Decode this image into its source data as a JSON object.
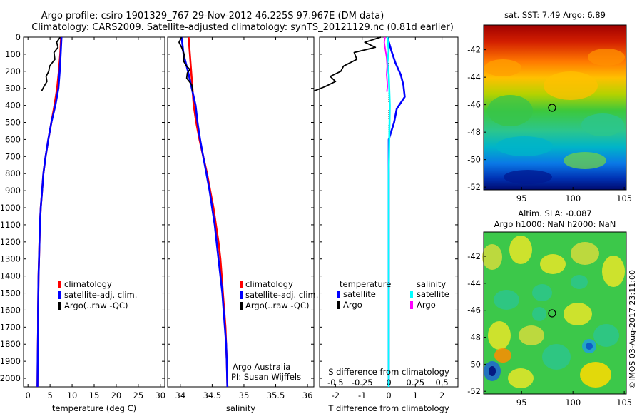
{
  "header": {
    "title_line1": "Argo profile: csiro 1901329_767 29-Nov-2012 46.225S 97.967E (DM data)",
    "title_line2": "Climatology: CARS2009. Satellite-adjusted climatology: synTS_20121129.nc (0.81d earlier)"
  },
  "annotations": {
    "argo_australia": "Argo Australia",
    "pi": "PI: Susan Wijffels",
    "imos_stamp": "©IMOS 03-Aug-2017 23:11:00"
  },
  "colors": {
    "climatology": "#ff0000",
    "satellite": "#0000ff",
    "argo": "#000000",
    "sal_satellite": "#00ffff",
    "sal_argo": "#ff00ff"
  },
  "chart_data": [
    {
      "id": "temperature",
      "type": "line",
      "xlabel": "temperature (deg C)",
      "ylabel": "",
      "xlim": [
        -1,
        31
      ],
      "ylim": [
        2050,
        0
      ],
      "xticks": [
        0,
        5,
        10,
        15,
        20,
        25,
        30
      ],
      "yticks": [
        0,
        100,
        200,
        300,
        400,
        500,
        600,
        700,
        800,
        900,
        1000,
        1100,
        1200,
        1300,
        1400,
        1500,
        1600,
        1700,
        1800,
        1900,
        2000
      ],
      "legend": [
        "climatology",
        "satellite-adj. clim.",
        "Argo(..raw -QC)"
      ],
      "legend_position": "lower-center",
      "series": [
        {
          "name": "climatology",
          "color": "#ff0000",
          "x": [
            7.5,
            7.3,
            7.0,
            6.6,
            6.0,
            5.3,
            4.6,
            4.0,
            3.5,
            3.2,
            2.9,
            2.7,
            2.6,
            2.5,
            2.4,
            2.35,
            2.3,
            2.3,
            2.25,
            2.2,
            2.15
          ],
          "y": [
            0,
            100,
            200,
            300,
            400,
            500,
            600,
            700,
            800,
            900,
            1000,
            1100,
            1200,
            1300,
            1400,
            1500,
            1600,
            1700,
            1800,
            1900,
            2050
          ]
        },
        {
          "name": "satellite-adj. clim.",
          "color": "#0000ff",
          "x": [
            7.6,
            7.4,
            7.2,
            6.9,
            6.2,
            5.3,
            4.6,
            4.0,
            3.5,
            3.2,
            2.9,
            2.7,
            2.6,
            2.5,
            2.4,
            2.35,
            2.3,
            2.3,
            2.25,
            2.2,
            2.15
          ],
          "y": [
            0,
            100,
            200,
            300,
            400,
            500,
            600,
            700,
            800,
            900,
            1000,
            1100,
            1200,
            1300,
            1400,
            1500,
            1600,
            1700,
            1800,
            1900,
            2050
          ]
        },
        {
          "name": "Argo(..raw -QC)",
          "color": "#000000",
          "x": [
            7.3,
            6.5,
            6.8,
            5.9,
            6.1,
            4.9,
            4.7,
            4.1,
            4.3,
            3.6,
            3.1
          ],
          "y": [
            0,
            30,
            60,
            90,
            130,
            170,
            200,
            230,
            260,
            290,
            315
          ]
        }
      ]
    },
    {
      "id": "salinity",
      "type": "line",
      "xlabel": "salinity",
      "ylabel": "",
      "xlim": [
        33.8,
        36.1
      ],
      "ylim": [
        2050,
        0
      ],
      "xticks": [
        34,
        34.5,
        35,
        35.5,
        36
      ],
      "legend": [
        "climatology",
        "satellite-adj. clim.",
        "Argo(..raw -QC)"
      ],
      "legend_position": "lower-right",
      "series": [
        {
          "name": "climatology",
          "color": "#ff0000",
          "x": [
            34.13,
            34.15,
            34.17,
            34.19,
            34.21,
            34.25,
            34.3,
            34.36,
            34.42,
            34.47,
            34.52,
            34.56,
            34.6,
            34.63,
            34.65,
            34.67,
            34.69,
            34.71,
            34.72,
            34.73,
            34.74
          ],
          "y": [
            0,
            100,
            200,
            300,
            400,
            500,
            600,
            700,
            800,
            900,
            1000,
            1100,
            1200,
            1300,
            1400,
            1500,
            1600,
            1700,
            1800,
            1900,
            2050
          ]
        },
        {
          "name": "satellite-adj. clim.",
          "color": "#0000ff",
          "x": [
            34.02,
            34.05,
            34.12,
            34.18,
            34.24,
            34.27,
            34.31,
            34.36,
            34.41,
            34.46,
            34.5,
            34.54,
            34.57,
            34.6,
            34.63,
            34.66,
            34.68,
            34.7,
            34.72,
            34.73,
            34.74
          ],
          "y": [
            0,
            100,
            200,
            300,
            400,
            500,
            600,
            700,
            800,
            900,
            1000,
            1100,
            1200,
            1300,
            1400,
            1500,
            1600,
            1700,
            1800,
            1900,
            2050
          ]
        },
        {
          "name": "Argo(..raw -QC)",
          "color": "#000000",
          "x": [
            34.02,
            33.98,
            34.02,
            34.06,
            34.05,
            34.1,
            34.15,
            34.11,
            34.1,
            34.14,
            34.18,
            34.19,
            34.19
          ],
          "y": [
            0,
            30,
            60,
            100,
            140,
            170,
            190,
            210,
            240,
            260,
            280,
            300,
            320
          ]
        }
      ]
    },
    {
      "id": "difference",
      "type": "line",
      "xlabel": "T difference from climatology",
      "xlabel_top": "S difference from climatology",
      "ylabel": "",
      "xlim": [
        -2.6,
        2.6
      ],
      "ylim": [
        2050,
        0
      ],
      "xticks": [
        -2,
        -1,
        0,
        1,
        2
      ],
      "xticks_top": [
        "-0.5",
        "-0.25",
        "0",
        "0.25",
        "0.5"
      ],
      "legend_headers": [
        "temperature",
        "salinity"
      ],
      "legend": [
        "satellite",
        "Argo",
        "satellite",
        "Argo"
      ],
      "legend_position": "lower-center",
      "series": [
        {
          "name": "satellite",
          "group": "temperature",
          "color": "#0000ff",
          "x": [
            -0.05,
            0.1,
            0.25,
            0.45,
            0.55,
            0.6,
            0.3,
            0.2,
            0.0,
            0.0,
            0.0,
            0.0,
            0.0,
            0.0,
            0.0,
            0.0,
            0.0,
            0.0,
            0.0,
            0.0,
            0.0
          ],
          "y": [
            0,
            80,
            150,
            220,
            280,
            350,
            420,
            500,
            600,
            700,
            800,
            900,
            1000,
            1100,
            1200,
            1300,
            1400,
            1500,
            1600,
            1700,
            2050
          ]
        },
        {
          "name": "Argo",
          "group": "temperature",
          "color": "#000000",
          "x": [
            -0.3,
            -0.9,
            -0.5,
            -1.3,
            -1.2,
            -1.7,
            -1.8,
            -2.2,
            -2.0,
            -2.4,
            -2.8
          ],
          "y": [
            0,
            30,
            60,
            90,
            130,
            170,
            200,
            230,
            260,
            290,
            315
          ]
        },
        {
          "name": "satellite",
          "group": "salinity",
          "color": "#00ffff",
          "x": [
            -0.05,
            0.0,
            -0.05,
            0.0,
            0.02,
            0.04,
            0.03,
            0.02,
            0.01,
            0.0,
            0.0,
            0.0,
            0.0,
            0.0,
            0.0,
            0.0,
            0.0,
            0.0,
            0.0,
            0.0,
            0.0
          ],
          "y": [
            0,
            80,
            150,
            220,
            300,
            400,
            500,
            600,
            700,
            800,
            900,
            1000,
            1100,
            1200,
            1300,
            1400,
            1500,
            1600,
            1700,
            1800,
            2050
          ]
        },
        {
          "name": "Argo",
          "group": "salinity",
          "color": "#ff00ff",
          "x": [
            -0.14,
            -0.17,
            -0.12,
            -0.08,
            -0.06,
            -0.08,
            -0.06,
            -0.05,
            -0.07
          ],
          "y": [
            0,
            30,
            80,
            120,
            170,
            220,
            260,
            290,
            320
          ]
        }
      ]
    },
    {
      "id": "sst_map",
      "type": "heatmap",
      "title": "sat. SST: 7.49 Argo: 6.89",
      "xlim": [
        91.3,
        105.2
      ],
      "ylim": [
        -52.2,
        -40.2
      ],
      "xticks": [
        95,
        100,
        105
      ],
      "yticks": [
        -42,
        -44,
        -46,
        -48,
        -50,
        -52
      ],
      "argo_marker": {
        "lon": 97.967,
        "lat": -46.225
      }
    },
    {
      "id": "sla_map",
      "type": "heatmap",
      "title": "Altim. SLA: -0.087",
      "subtitle": "Argo h1000: NaN h2000: NaN",
      "xlim": [
        91.3,
        105.2
      ],
      "ylim": [
        -52.2,
        -40.2
      ],
      "xticks": [
        95,
        100,
        105
      ],
      "yticks": [
        -42,
        -44,
        -46,
        -48,
        -50,
        -52
      ],
      "argo_marker": {
        "lon": 97.967,
        "lat": -46.225
      }
    }
  ]
}
